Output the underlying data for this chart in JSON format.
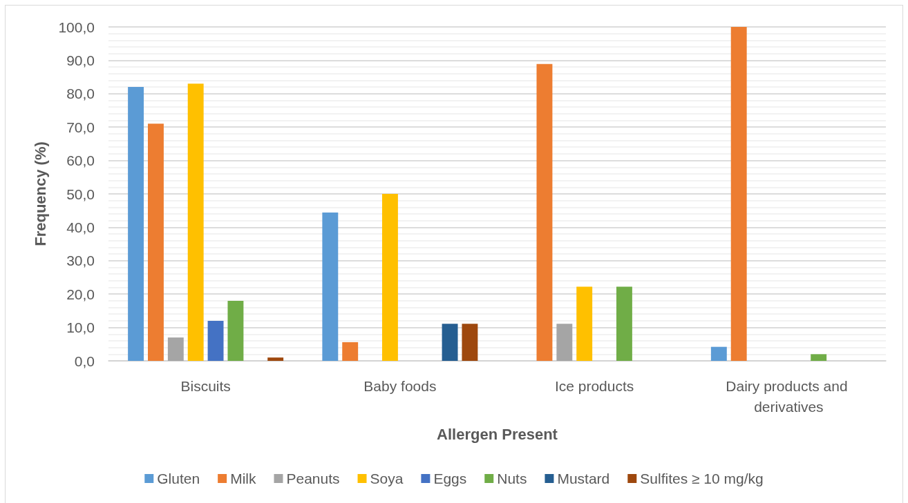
{
  "chart_data": {
    "type": "bar",
    "xlabel": "Allergen Present",
    "ylabel": "Frequency (%)",
    "categories": [
      "Biscuits",
      "Baby foods",
      "Ice products",
      "Dairy products and derivatives"
    ],
    "series": [
      {
        "name": "Gluten",
        "color": "#5b9bd5",
        "values": [
          82,
          44.4,
          0,
          4.2
        ]
      },
      {
        "name": "Milk",
        "color": "#ed7d31",
        "values": [
          71,
          5.6,
          88.9,
          100
        ]
      },
      {
        "name": "Peanuts",
        "color": "#a5a5a5",
        "values": [
          7,
          0,
          11.1,
          0
        ]
      },
      {
        "name": "Soya",
        "color": "#ffc000",
        "values": [
          83,
          50,
          22.2,
          0
        ]
      },
      {
        "name": "Eggs",
        "color": "#4472c4",
        "values": [
          12,
          0,
          0,
          0
        ]
      },
      {
        "name": "Nuts",
        "color": "#70ad47",
        "values": [
          18,
          0,
          22.2,
          2
        ]
      },
      {
        "name": "Mustard",
        "color": "#255e91",
        "values": [
          0,
          11.1,
          0,
          0
        ]
      },
      {
        "name": "Sulfites ≥ 10 mg/kg",
        "color": "#9e480e",
        "values": [
          1,
          11.1,
          0,
          0
        ]
      }
    ],
    "ylim": [
      0,
      100
    ],
    "yticks": [
      {
        "value": 0,
        "label": "0,0"
      },
      {
        "value": 2,
        "label": null
      },
      {
        "value": 4,
        "label": null
      },
      {
        "value": 6,
        "label": null
      },
      {
        "value": 8,
        "label": null
      },
      {
        "value": 10,
        "label": "10,0"
      },
      {
        "value": 12,
        "label": null
      },
      {
        "value": 14,
        "label": null
      },
      {
        "value": 16,
        "label": null
      },
      {
        "value": 18,
        "label": null
      },
      {
        "value": 20,
        "label": "20,0"
      },
      {
        "value": 22,
        "label": null
      },
      {
        "value": 24,
        "label": null
      },
      {
        "value": 26,
        "label": null
      },
      {
        "value": 28,
        "label": null
      },
      {
        "value": 30,
        "label": "30,0"
      },
      {
        "value": 32,
        "label": null
      },
      {
        "value": 34,
        "label": null
      },
      {
        "value": 36,
        "label": null
      },
      {
        "value": 38,
        "label": null
      },
      {
        "value": 40,
        "label": "40,0"
      },
      {
        "value": 42,
        "label": null
      },
      {
        "value": 44,
        "label": null
      },
      {
        "value": 46,
        "label": null
      },
      {
        "value": 48,
        "label": null
      },
      {
        "value": 50,
        "label": "50,0"
      },
      {
        "value": 52,
        "label": null
      },
      {
        "value": 54,
        "label": null
      },
      {
        "value": 56,
        "label": null
      },
      {
        "value": 58,
        "label": null
      },
      {
        "value": 60,
        "label": "60,0"
      },
      {
        "value": 62,
        "label": null
      },
      {
        "value": 64,
        "label": null
      },
      {
        "value": 66,
        "label": null
      },
      {
        "value": 68,
        "label": null
      },
      {
        "value": 70,
        "label": "70,0"
      },
      {
        "value": 72,
        "label": null
      },
      {
        "value": 74,
        "label": null
      },
      {
        "value": 76,
        "label": null
      },
      {
        "value": 78,
        "label": null
      },
      {
        "value": 80,
        "label": "80,0"
      },
      {
        "value": 82,
        "label": null
      },
      {
        "value": 84,
        "label": null
      },
      {
        "value": 86,
        "label": null
      },
      {
        "value": 88,
        "label": null
      },
      {
        "value": 90,
        "label": "90,0"
      },
      {
        "value": 92,
        "label": null
      },
      {
        "value": 94,
        "label": null
      },
      {
        "value": 96,
        "label": null
      },
      {
        "value": 98,
        "label": null
      },
      {
        "value": 100,
        "label": "100,0"
      }
    ],
    "grid": "y",
    "legend": "bottom"
  }
}
